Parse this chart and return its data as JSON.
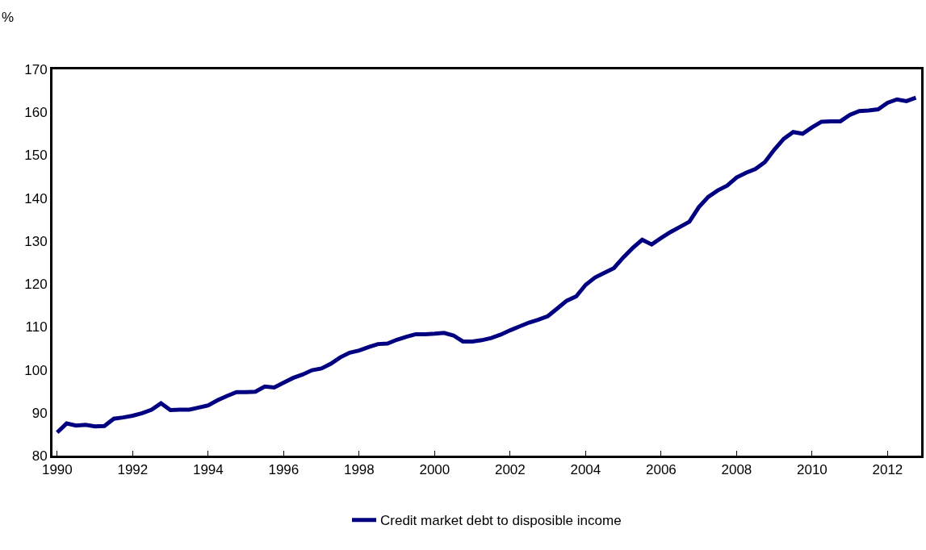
{
  "chart_data": {
    "type": "line",
    "ylabel": "%",
    "x": [
      1990.0,
      1990.25,
      1990.5,
      1990.75,
      1991.0,
      1991.25,
      1991.5,
      1991.75,
      1992.0,
      1992.25,
      1992.5,
      1992.75,
      1993.0,
      1993.25,
      1993.5,
      1993.75,
      1994.0,
      1994.25,
      1994.5,
      1994.75,
      1995.0,
      1995.25,
      1995.5,
      1995.75,
      1996.0,
      1996.25,
      1996.5,
      1996.75,
      1997.0,
      1997.25,
      1997.5,
      1997.75,
      1998.0,
      1998.25,
      1998.5,
      1998.75,
      1999.0,
      1999.25,
      1999.5,
      1999.75,
      2000.0,
      2000.25,
      2000.5,
      2000.75,
      2001.0,
      2001.25,
      2001.5,
      2001.75,
      2002.0,
      2002.25,
      2002.5,
      2002.75,
      2003.0,
      2003.25,
      2003.5,
      2003.75,
      2004.0,
      2004.25,
      2004.5,
      2004.75,
      2005.0,
      2005.25,
      2005.5,
      2005.75,
      2006.0,
      2006.25,
      2006.5,
      2006.75,
      2007.0,
      2007.25,
      2007.5,
      2007.75,
      2008.0,
      2008.25,
      2008.5,
      2008.75,
      2009.0,
      2009.25,
      2009.5,
      2009.75,
      2010.0,
      2010.25,
      2010.5,
      2010.75,
      2011.0,
      2011.25,
      2011.5,
      2011.75,
      2012.0,
      2012.25,
      2012.5,
      2012.75
    ],
    "series": [
      {
        "name": "Credit market debt to disposible income",
        "color": "#000080",
        "values": [
          85.4,
          87.5,
          87.0,
          87.2,
          86.8,
          86.9,
          88.6,
          88.9,
          89.3,
          89.9,
          90.7,
          92.2,
          90.6,
          90.7,
          90.7,
          91.2,
          91.7,
          92.9,
          93.9,
          94.8,
          94.8,
          94.9,
          96.1,
          95.9,
          97.0,
          98.1,
          98.9,
          99.9,
          100.3,
          101.4,
          102.9,
          104.0,
          104.5,
          105.3,
          106.0,
          106.1,
          107.0,
          107.7,
          108.3,
          108.3,
          108.4,
          108.6,
          108.0,
          106.6,
          106.6,
          106.9,
          107.4,
          108.2,
          109.2,
          110.1,
          111.0,
          111.7,
          112.5,
          114.3,
          116.1,
          117.1,
          119.8,
          121.5,
          122.6,
          123.7,
          126.2,
          128.4,
          130.3,
          129.2,
          130.7,
          132.1,
          133.3,
          134.5,
          137.9,
          140.3,
          141.8,
          142.9,
          144.8,
          145.9,
          146.8,
          148.4,
          151.3,
          153.8,
          155.4,
          155.0,
          156.5,
          157.8,
          157.9,
          157.9,
          159.4,
          160.3,
          160.4,
          160.7,
          162.2,
          163.0,
          162.6,
          163.4
        ]
      }
    ],
    "xlim": [
      1989.875,
      2012.89
    ],
    "xticks": [
      1990,
      1992,
      1994,
      1996,
      1998,
      2000,
      2002,
      2004,
      2006,
      2008,
      2010,
      2012
    ],
    "ylim": [
      80,
      170
    ],
    "yticks": [
      80,
      90,
      100,
      110,
      120,
      130,
      140,
      150,
      160,
      170
    ],
    "legend": "bottom",
    "marker": "none",
    "line_style": "solid"
  }
}
